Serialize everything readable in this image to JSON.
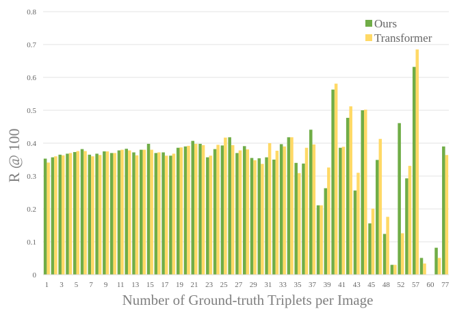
{
  "chart_data": {
    "type": "bar",
    "xlabel": "Number of Ground-truth Triplets per Image",
    "ylabel": "R @ 100",
    "ylim": [
      0,
      0.8
    ],
    "yticks": [
      "0",
      "0.1",
      "0.2",
      "0.3",
      "0.4",
      "0.5",
      "0.6",
      "0.7",
      "0.8"
    ],
    "grid": true,
    "legend_position": "top-right",
    "categories": [
      "1",
      "2",
      "3",
      "4",
      "5",
      "6",
      "7",
      "8",
      "9",
      "10",
      "11",
      "12",
      "13",
      "14",
      "15",
      "16",
      "17",
      "18",
      "19",
      "20",
      "21",
      "22",
      "23",
      "24",
      "25",
      "26",
      "27",
      "28",
      "29",
      "30",
      "31",
      "32",
      "33",
      "34",
      "35",
      "36",
      "37",
      "38",
      "39",
      "40",
      "41",
      "42",
      "43",
      "44",
      "45",
      "46",
      "48",
      "51",
      "52",
      "56",
      "57",
      "58",
      "60",
      "66",
      "77"
    ],
    "tick_labels": [
      "1",
      "3",
      "5",
      "7",
      "9",
      "11",
      "13",
      "15",
      "17",
      "19",
      "21",
      "23",
      "25",
      "27",
      "29",
      "31",
      "33",
      "35",
      "37",
      "39",
      "41",
      "43",
      "45",
      "48",
      "52",
      "57",
      "60",
      "77"
    ],
    "series": [
      {
        "name": "Ours",
        "color": "#70ad47",
        "values": [
          0.353,
          0.357,
          0.365,
          0.368,
          0.373,
          0.382,
          0.365,
          0.368,
          0.375,
          0.37,
          0.378,
          0.383,
          0.372,
          0.38,
          0.398,
          0.37,
          0.372,
          0.362,
          0.386,
          0.39,
          0.407,
          0.398,
          0.357,
          0.382,
          0.393,
          0.418,
          0.37,
          0.391,
          0.355,
          0.354,
          0.357,
          0.35,
          0.397,
          0.418,
          0.34,
          0.338,
          0.441,
          0.211,
          0.263,
          0.563,
          0.386,
          0.477,
          0.256,
          0.5,
          0.156,
          0.349,
          0.124,
          0.03,
          0.461,
          0.293,
          0.632,
          0.051,
          0,
          0.082,
          0.39
        ]
      },
      {
        "name": "Transformer",
        "color": "#ffd966",
        "values": [
          0.341,
          0.36,
          0.363,
          0.37,
          0.376,
          0.376,
          0.36,
          0.364,
          0.375,
          0.37,
          0.38,
          0.378,
          0.363,
          0.38,
          0.38,
          0.372,
          0.362,
          0.368,
          0.387,
          0.392,
          0.398,
          0.394,
          0.362,
          0.395,
          0.417,
          0.394,
          0.378,
          0.381,
          0.348,
          0.337,
          0.4,
          0.377,
          0.39,
          0.418,
          0.309,
          0.386,
          0.396,
          0.211,
          0.326,
          0.581,
          0.389,
          0.512,
          0.31,
          0.502,
          0.201,
          0.413,
          0.176,
          0.03,
          0.126,
          0.331,
          0.685,
          0.034,
          0,
          0.051,
          0.364
        ]
      }
    ]
  }
}
